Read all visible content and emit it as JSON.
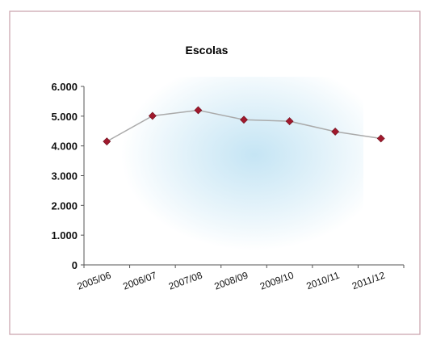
{
  "chart_data": {
    "type": "line",
    "title": "Escolas",
    "categories": [
      "2005/06",
      "2006/07",
      "2007/08",
      "2008/09",
      "2009/10",
      "2010/11",
      "2011/12"
    ],
    "series": [
      {
        "values": [
          4150,
          5010,
          5200,
          4880,
          4830,
          4480,
          4250
        ]
      }
    ],
    "ylim": [
      0,
      6000
    ],
    "yticks": [
      "0",
      "1.000",
      "2.000",
      "3.000",
      "4.000",
      "5.000",
      "6.000"
    ],
    "grid": false,
    "legend": "none",
    "colors": {
      "frame": "#c9a0aa",
      "line": "#aaaaaa",
      "marker": "#a0192d",
      "axis": "#555555",
      "gradient_center": "#bfe2f3"
    }
  }
}
